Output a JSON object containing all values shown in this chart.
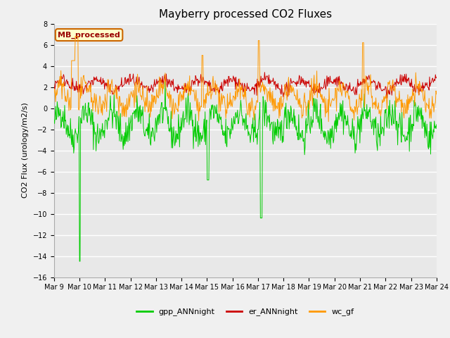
{
  "title": "Mayberry processed CO2 Fluxes",
  "ylabel": "CO2 Flux (urology/m2/s)",
  "xlabel": "",
  "ylim": [
    -16,
    8
  ],
  "yticks": [
    -16,
    -14,
    -12,
    -10,
    -8,
    -6,
    -4,
    -2,
    0,
    2,
    4,
    6,
    8
  ],
  "xtick_labels": [
    "Mar 9",
    "Mar 10",
    "Mar 11",
    "Mar 12",
    "Mar 13",
    "Mar 14",
    "Mar 15",
    "Mar 16",
    "Mar 17",
    "Mar 18",
    "Mar 19",
    "Mar 20",
    "Mar 21",
    "Mar 22",
    "Mar 23",
    "Mar 24"
  ],
  "n_points": 720,
  "colors": {
    "gpp": "#00cc00",
    "er": "#cc0000",
    "wc": "#ff9900",
    "background": "#e8e8e8",
    "fig_background": "#f0f0f0",
    "grid": "#ffffff"
  },
  "legend_label": "MB_processed",
  "legend_box_facecolor": "#ffffcc",
  "legend_box_edgecolor": "#cc6600",
  "legend_label_color": "#990000",
  "series_labels": [
    "gpp_ANNnight",
    "er_ANNnight",
    "wc_gf"
  ],
  "title_fontsize": 11,
  "axis_fontsize": 8,
  "tick_fontsize": 7,
  "legend_fontsize": 8
}
